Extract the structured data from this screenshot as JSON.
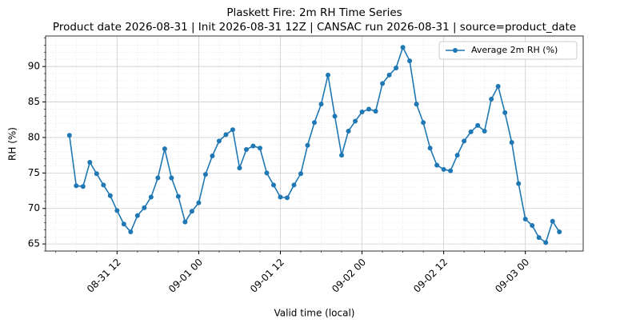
{
  "chart_data": {
    "type": "line",
    "title": "Plaskett Fire: 2m RH Time Series",
    "subtitle": "Product date 2026-08-31 | Init 2026-08-31 12Z | CANSAC run 2026-08-31 | source=product_date",
    "x_label": "Valid time (local)",
    "y_label": "RH (%)",
    "x": [
      "08-31 05",
      "08-31 06",
      "08-31 07",
      "08-31 08",
      "08-31 09",
      "08-31 10",
      "08-31 11",
      "08-31 12",
      "08-31 13",
      "08-31 14",
      "08-31 15",
      "08-31 16",
      "08-31 17",
      "08-31 18",
      "08-31 19",
      "08-31 20",
      "08-31 21",
      "08-31 22",
      "08-31 23",
      "09-01 00",
      "09-01 01",
      "09-01 02",
      "09-01 03",
      "09-01 04",
      "09-01 05",
      "09-01 06",
      "09-01 07",
      "09-01 08",
      "09-01 09",
      "09-01 10",
      "09-01 11",
      "09-01 12",
      "09-01 13",
      "09-01 14",
      "09-01 15",
      "09-01 16",
      "09-01 17",
      "09-01 18",
      "09-01 19",
      "09-01 20",
      "09-01 21",
      "09-01 22",
      "09-01 23",
      "09-02 00",
      "09-02 01",
      "09-02 02",
      "09-02 03",
      "09-02 04",
      "09-02 05",
      "09-02 06",
      "09-02 07",
      "09-02 08",
      "09-02 09",
      "09-02 10",
      "09-02 11",
      "09-02 12",
      "09-02 13",
      "09-02 14",
      "09-02 15",
      "09-02 16",
      "09-02 17",
      "09-02 18",
      "09-02 19",
      "09-02 20",
      "09-02 21",
      "09-02 22",
      "09-02 23",
      "09-03 00",
      "09-03 01",
      "09-03 02",
      "09-03 03",
      "09-03 04",
      "09-03 05"
    ],
    "series": [
      {
        "name": "Average 2m RH (%)",
        "color": "#1f77b4",
        "values": [
          80.3,
          73.2,
          73.1,
          76.5,
          74.9,
          73.3,
          71.8,
          69.7,
          67.8,
          66.7,
          69.0,
          70.1,
          71.6,
          74.3,
          78.4,
          74.3,
          71.7,
          68.1,
          69.6,
          70.8,
          74.8,
          77.4,
          79.5,
          80.4,
          81.1,
          75.7,
          78.3,
          78.8,
          78.5,
          75.0,
          73.3,
          71.6,
          71.5,
          73.3,
          74.9,
          78.9,
          82.1,
          84.7,
          88.8,
          83.0,
          77.5,
          80.9,
          82.3,
          83.6,
          84.0,
          83.7,
          87.6,
          88.8,
          89.8,
          92.7,
          90.8,
          84.7,
          82.1,
          78.5,
          76.1,
          75.5,
          75.3,
          77.5,
          79.5,
          80.8,
          81.7,
          80.9,
          85.4,
          87.2,
          83.5,
          79.3,
          73.5,
          68.5,
          67.6,
          65.9,
          65.2,
          68.2,
          66.7
        ]
      }
    ],
    "xlim": [
      "08-31 01:30",
      "09-03 08:30"
    ],
    "xticks": [
      {
        "value": "08-31 12:00",
        "label": "08-31 12"
      },
      {
        "value": "09-01 00:00",
        "label": "09-01 00"
      },
      {
        "value": "09-01 12:00",
        "label": "09-01 12"
      },
      {
        "value": "09-02 00:00",
        "label": "09-02 00"
      },
      {
        "value": "09-02 12:00",
        "label": "09-02 12"
      },
      {
        "value": "09-03 00:00",
        "label": "09-03 00"
      }
    ],
    "ylim": [
      64,
      94.3
    ],
    "yticks": [
      65,
      70,
      75,
      80,
      85,
      90
    ],
    "grid": true,
    "legend": "upper right"
  }
}
